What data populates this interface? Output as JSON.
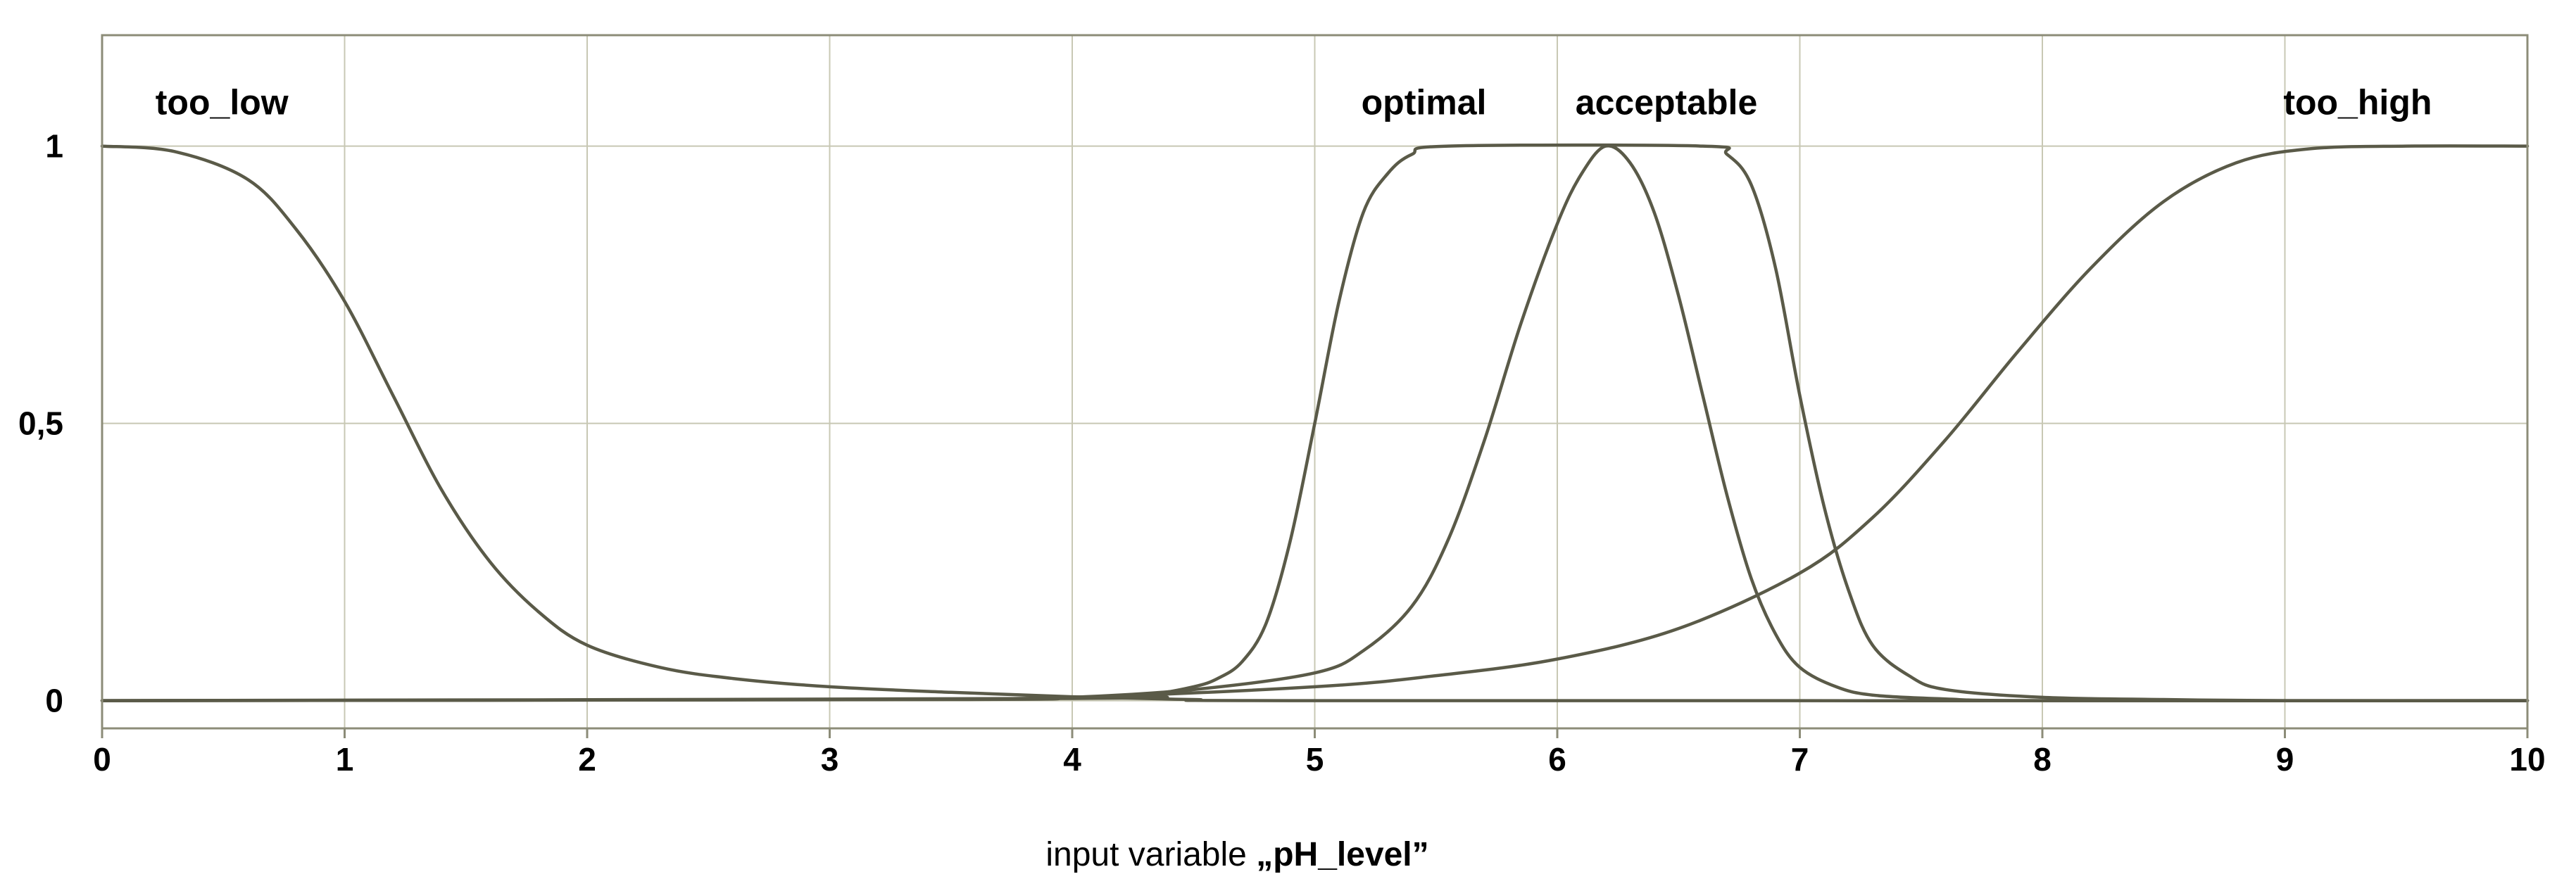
{
  "chart_data": {
    "type": "line",
    "title": "",
    "xlabel_prefix": "input variable ",
    "xlabel_variable": "„pH_level”",
    "ylabel": "",
    "xlim": [
      0,
      10
    ],
    "ylim": [
      -0.05,
      1.2
    ],
    "x_ticks": [
      0,
      1,
      2,
      3,
      4,
      5,
      6,
      7,
      8,
      9,
      10
    ],
    "x_tick_labels": [
      "0",
      "1",
      "2",
      "3",
      "4",
      "5",
      "6",
      "7",
      "8",
      "9",
      "10"
    ],
    "y_ticks": [
      0,
      0.5,
      1
    ],
    "y_tick_labels": [
      "0",
      "0,5",
      "1"
    ],
    "grid": true,
    "line_color": "#5a5a48",
    "grid_color": "#c8c8b4",
    "series": [
      {
        "name": "too_low",
        "label_anchor": [
          0.25,
          1.08
        ],
        "points": [
          [
            0,
            1.0
          ],
          [
            0.3,
            0.99
          ],
          [
            0.6,
            0.94
          ],
          [
            0.8,
            0.85
          ],
          [
            1.0,
            0.72
          ],
          [
            1.2,
            0.55
          ],
          [
            1.4,
            0.38
          ],
          [
            1.6,
            0.25
          ],
          [
            1.8,
            0.16
          ],
          [
            2.0,
            0.1
          ],
          [
            2.3,
            0.06
          ],
          [
            2.6,
            0.04
          ],
          [
            3.0,
            0.025
          ],
          [
            3.5,
            0.015
          ],
          [
            4.0,
            0.007
          ],
          [
            4.5,
            0.002
          ],
          [
            5.0,
            0.0
          ],
          [
            10,
            0.0
          ]
        ]
      },
      {
        "name": "optimal",
        "label_anchor": [
          5.45,
          1.08
        ],
        "points": [
          [
            0,
            0.0
          ],
          [
            4.0,
            0.004
          ],
          [
            4.3,
            0.01
          ],
          [
            4.5,
            0.025
          ],
          [
            4.6,
            0.04
          ],
          [
            4.7,
            0.07
          ],
          [
            4.8,
            0.14
          ],
          [
            4.9,
            0.29
          ],
          [
            5.0,
            0.5
          ],
          [
            5.1,
            0.72
          ],
          [
            5.2,
            0.88
          ],
          [
            5.3,
            0.95
          ],
          [
            5.4,
            0.985
          ],
          [
            5.55,
            1.0
          ],
          [
            6.6,
            1.0
          ],
          [
            6.7,
            0.985
          ],
          [
            6.8,
            0.93
          ],
          [
            6.9,
            0.78
          ],
          [
            7.0,
            0.55
          ],
          [
            7.1,
            0.35
          ],
          [
            7.2,
            0.2
          ],
          [
            7.3,
            0.1
          ],
          [
            7.45,
            0.045
          ],
          [
            7.6,
            0.02
          ],
          [
            8.0,
            0.006
          ],
          [
            8.5,
            0.002
          ],
          [
            9.0,
            0.0
          ],
          [
            10,
            0.0
          ]
        ]
      },
      {
        "name": "acceptable",
        "label_anchor": [
          6.45,
          1.08
        ],
        "points": [
          [
            0,
            0.0
          ],
          [
            3.5,
            0.002
          ],
          [
            4.0,
            0.006
          ],
          [
            4.5,
            0.02
          ],
          [
            5.0,
            0.05
          ],
          [
            5.2,
            0.09
          ],
          [
            5.4,
            0.17
          ],
          [
            5.55,
            0.29
          ],
          [
            5.7,
            0.47
          ],
          [
            5.85,
            0.68
          ],
          [
            6.0,
            0.86
          ],
          [
            6.1,
            0.95
          ],
          [
            6.2,
            1.0
          ],
          [
            6.3,
            0.97
          ],
          [
            6.4,
            0.88
          ],
          [
            6.5,
            0.73
          ],
          [
            6.6,
            0.55
          ],
          [
            6.7,
            0.37
          ],
          [
            6.8,
            0.22
          ],
          [
            6.9,
            0.12
          ],
          [
            7.0,
            0.06
          ],
          [
            7.15,
            0.025
          ],
          [
            7.3,
            0.01
          ],
          [
            7.6,
            0.003
          ],
          [
            8.0,
            0.0
          ],
          [
            10,
            0.0
          ]
        ]
      },
      {
        "name": "too_high",
        "label_anchor": [
          9.3,
          1.08
        ],
        "points": [
          [
            0,
            0.0
          ],
          [
            3.0,
            0.002
          ],
          [
            4.0,
            0.006
          ],
          [
            5.0,
            0.025
          ],
          [
            5.5,
            0.045
          ],
          [
            6.0,
            0.075
          ],
          [
            6.5,
            0.13
          ],
          [
            7.0,
            0.23
          ],
          [
            7.3,
            0.33
          ],
          [
            7.6,
            0.47
          ],
          [
            7.9,
            0.63
          ],
          [
            8.2,
            0.78
          ],
          [
            8.5,
            0.9
          ],
          [
            8.8,
            0.97
          ],
          [
            9.1,
            0.995
          ],
          [
            9.5,
            1.0
          ],
          [
            10,
            1.0
          ]
        ]
      }
    ]
  }
}
